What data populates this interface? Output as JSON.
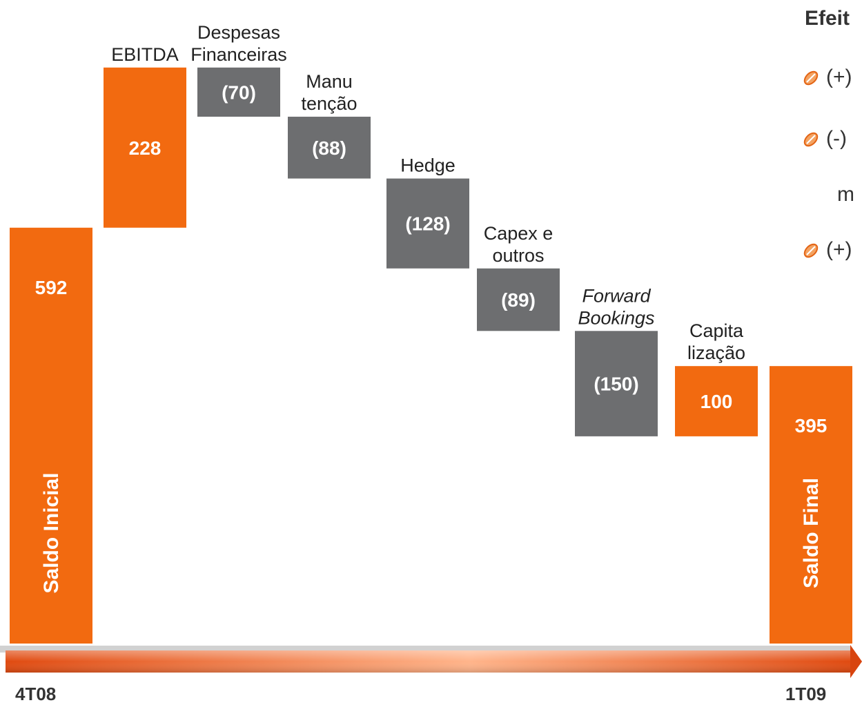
{
  "chart_data": {
    "type": "waterfall",
    "bars": [
      {
        "label": "Saldo Inicial",
        "value": 592,
        "display": "592",
        "kind": "total",
        "label_pos": "inside-vertical"
      },
      {
        "label": "EBITDA",
        "value": 228,
        "display": "228",
        "kind": "increase"
      },
      {
        "label": "Despesas\nFinanceiras",
        "value": -70,
        "display": "(70)",
        "kind": "decrease"
      },
      {
        "label": "Manu\ntenção",
        "value": -88,
        "display": "(88)",
        "kind": "decrease"
      },
      {
        "label": "Hedge",
        "value": -128,
        "display": "(128)",
        "kind": "decrease"
      },
      {
        "label": "Capex e\noutros",
        "value": -89,
        "display": "(89)",
        "kind": "decrease"
      },
      {
        "label": "Forward\nBookings",
        "value": -150,
        "display": "(150)",
        "kind": "decrease",
        "italic": true
      },
      {
        "label": "Capita\nlização",
        "value": 100,
        "display": "100",
        "kind": "increase"
      },
      {
        "label": "Saldo Final",
        "value": 395,
        "display": "395",
        "kind": "total",
        "label_pos": "inside-vertical"
      }
    ],
    "x_start_label": "4T08",
    "x_end_label": "1T09",
    "colors": {
      "increase": "#f26a10",
      "total": "#f26a10",
      "decrease": "#6d6e70",
      "value_text_up": "#ffffff",
      "value_text_down": "#ffffff"
    }
  },
  "side_panel": {
    "title": "Efeit",
    "items": [
      {
        "text": "(+)"
      },
      {
        "text": "(-)"
      },
      {
        "text": "(+)"
      }
    ],
    "continuation": "m"
  }
}
